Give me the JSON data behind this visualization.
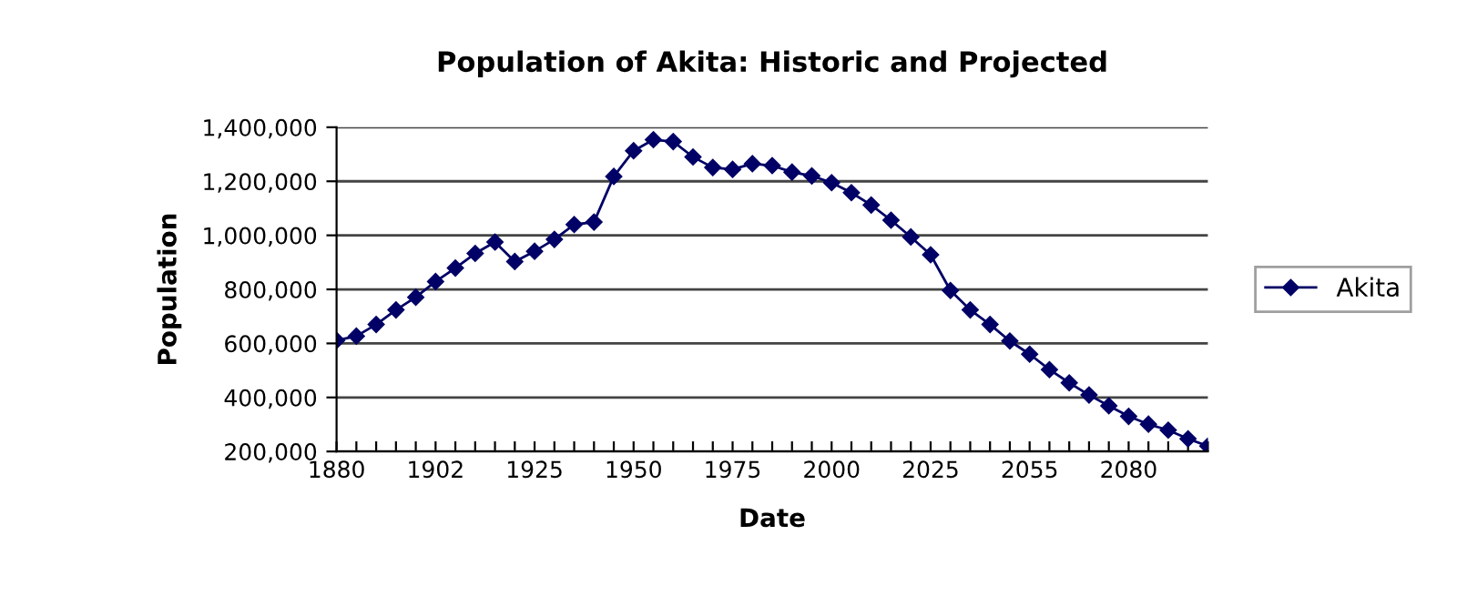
{
  "chart_data": {
    "type": "line",
    "title": "Population of Akita: Historic and Projected",
    "xlabel": "Date",
    "ylabel": "Population",
    "categories": [
      "1880",
      null,
      null,
      null,
      null,
      "1902",
      null,
      null,
      null,
      null,
      "1925",
      null,
      null,
      null,
      null,
      "1950",
      null,
      null,
      null,
      null,
      "1975",
      null,
      null,
      null,
      null,
      "2000",
      null,
      null,
      null,
      null,
      "2025",
      null,
      null,
      null,
      null,
      "2055",
      null,
      null,
      null,
      null,
      "2080",
      null,
      null,
      null,
      null
    ],
    "series": [
      {
        "name": "Akita",
        "color": "#000066",
        "values": [
          611000,
          627000,
          670000,
          724000,
          771000,
          829000,
          879000,
          933000,
          975000,
          903000,
          941000,
          985000,
          1040000,
          1049000,
          1218000,
          1313000,
          1354000,
          1347000,
          1290000,
          1251000,
          1244000,
          1265000,
          1258000,
          1234000,
          1220000,
          1195000,
          1158000,
          1112000,
          1056000,
          994000,
          928000,
          796000,
          724000,
          670000,
          609000,
          560000,
          503000,
          454000,
          409000,
          369000,
          330000,
          301000,
          279000,
          247000,
          220000
        ]
      }
    ],
    "ylim": [
      200000,
      1400000
    ],
    "yticks": [
      {
        "value": 200000,
        "label": "200,000"
      },
      {
        "value": 400000,
        "label": "400,000"
      },
      {
        "value": 600000,
        "label": "600,000"
      },
      {
        "value": 800000,
        "label": "800,000"
      },
      {
        "value": 1000000,
        "label": "1,000,000"
      },
      {
        "value": 1200000,
        "label": "1,200,000"
      },
      {
        "value": 1400000,
        "label": "1,400,000"
      }
    ],
    "grid": "y",
    "legend": "right",
    "marker": "diamond",
    "line_style": "solid"
  }
}
